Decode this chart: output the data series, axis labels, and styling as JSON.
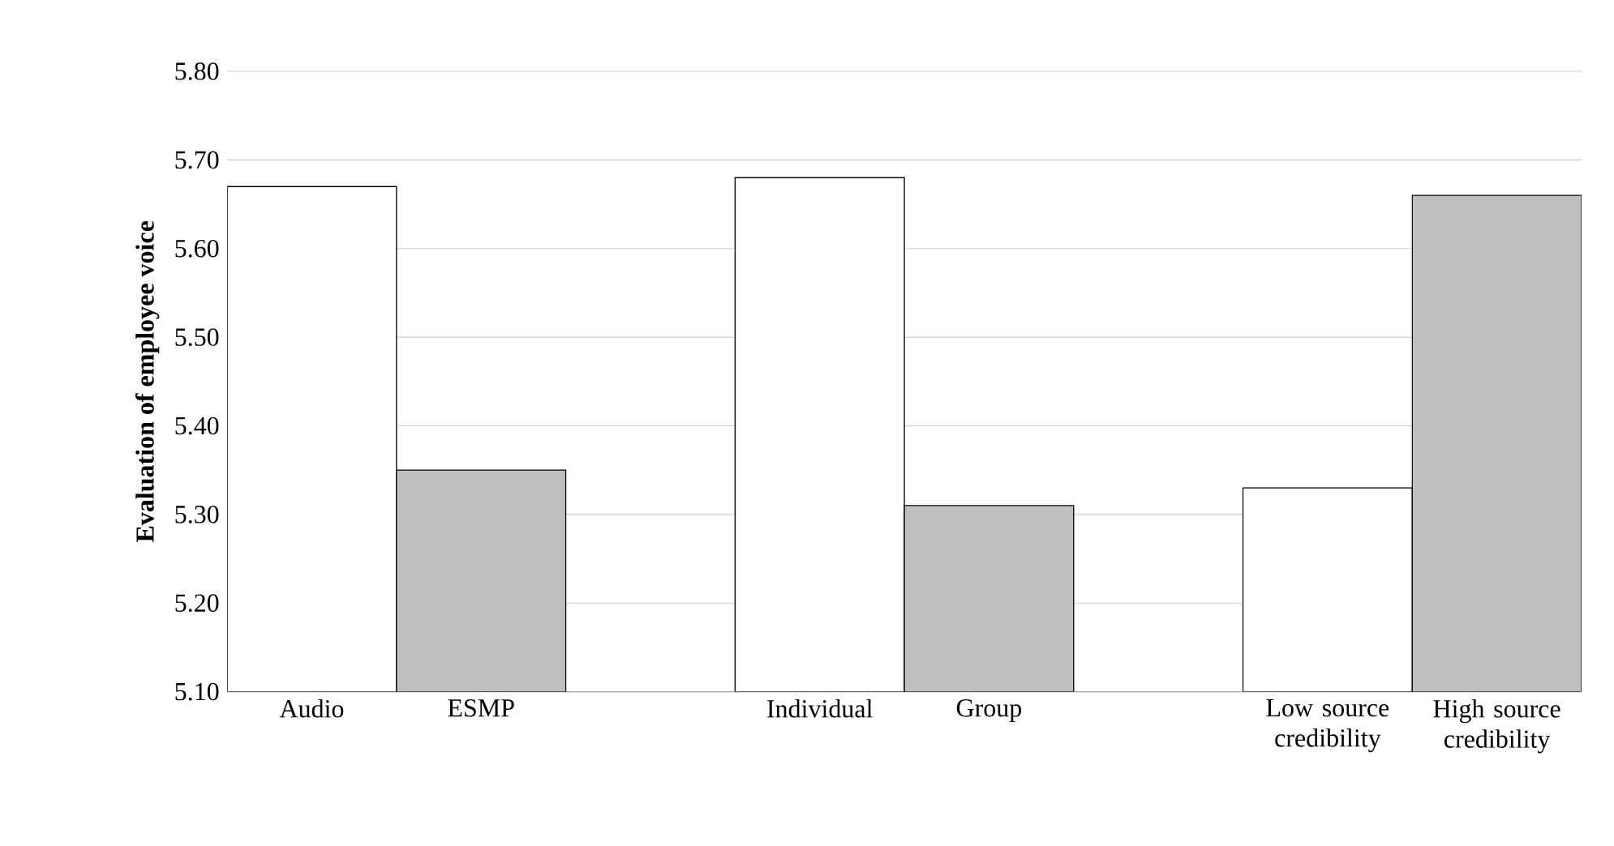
{
  "chart_data": {
    "type": "bar",
    "ylabel": "Evaluation of employee voice",
    "categories": [
      "Audio",
      "ESMP",
      null,
      "Individual",
      "Group",
      null,
      "Low source credibility",
      "High source credibility"
    ],
    "values": [
      5.67,
      5.35,
      null,
      5.68,
      5.31,
      null,
      5.33,
      5.66
    ],
    "colors": [
      "#ffffff",
      "#bfbfbf",
      null,
      "#ffffff",
      "#bfbfbf",
      null,
      "#ffffff",
      "#bfbfbf"
    ],
    "ylim": [
      5.1,
      5.8
    ],
    "yticks": [
      {
        "value": 5.1,
        "label": "5.10"
      },
      {
        "value": 5.2,
        "label": "5.20"
      },
      {
        "value": 5.3,
        "label": "5.30"
      },
      {
        "value": 5.4,
        "label": "5.40"
      },
      {
        "value": 5.5,
        "label": "5.50"
      },
      {
        "value": 5.6,
        "label": "5.60"
      },
      {
        "value": 5.7,
        "label": "5.70"
      },
      {
        "value": 5.8,
        "label": "5.80"
      }
    ],
    "grid": "y"
  }
}
